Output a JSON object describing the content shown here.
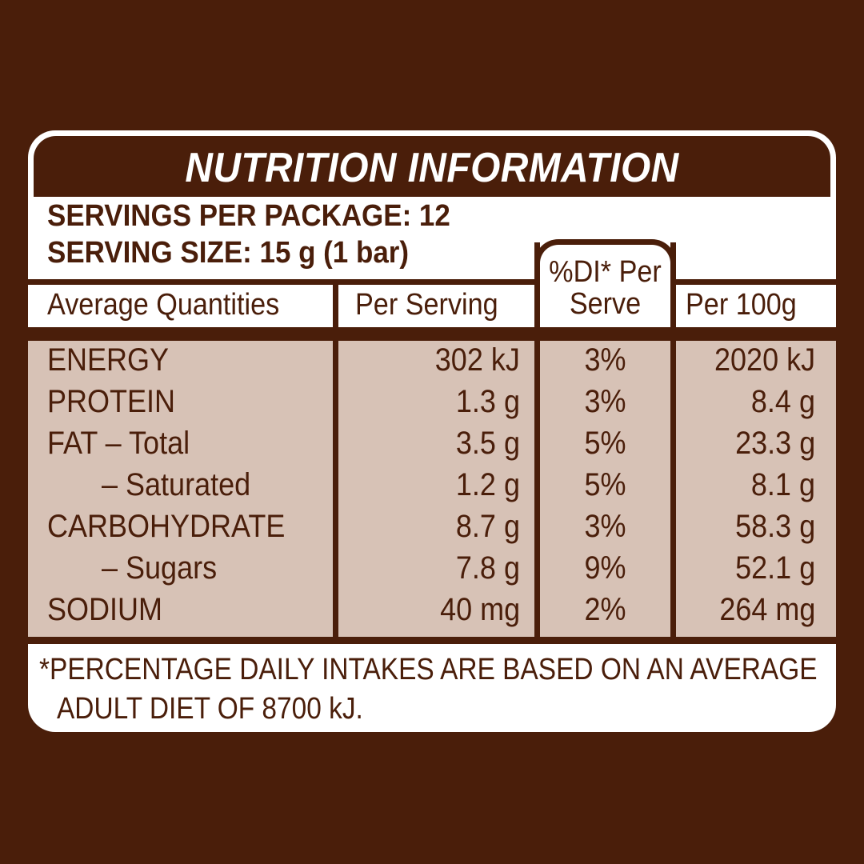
{
  "title": "NUTRITION INFORMATION",
  "servings_per_package": "SERVINGS PER PACKAGE: 12",
  "serving_size": "SERVING SIZE: 15 g (1 bar)",
  "headers": {
    "average_quantities": "Average Quantities",
    "per_serving": "Per Serving",
    "di_line1": "%DI* Per",
    "di_line2": "Serve",
    "per_100g": "Per 100g"
  },
  "rows": [
    {
      "name": "ENERGY",
      "per_serving": "302 kJ",
      "di": "3%",
      "per_100g": "2020 kJ"
    },
    {
      "name": "PROTEIN",
      "per_serving": "1.3 g",
      "di": "3%",
      "per_100g": "8.4 g"
    },
    {
      "name": "FAT – Total",
      "per_serving": "3.5 g",
      "di": "5%",
      "per_100g": "23.3 g"
    },
    {
      "name": "– Saturated",
      "per_serving": "1.2 g",
      "di": "5%",
      "per_100g": "8.1 g"
    },
    {
      "name": "CARBOHYDRATE",
      "per_serving": "8.7 g",
      "di": "3%",
      "per_100g": "58.3 g"
    },
    {
      "name": "– Sugars",
      "per_serving": "7.8 g",
      "di": "9%",
      "per_100g": "52.1 g"
    },
    {
      "name": "SODIUM",
      "per_serving": "40 mg",
      "di": "2%",
      "per_100g": "264 mg"
    }
  ],
  "footnote_line1": "*PERCENTAGE DAILY INTAKES ARE BASED ON AN AVERAGE",
  "footnote_line2": "ADULT DIET OF 8700 kJ.",
  "colors": {
    "brown": "#4a1e0a",
    "body_fill": "#d7c2b6",
    "panel": "#ffffff"
  }
}
